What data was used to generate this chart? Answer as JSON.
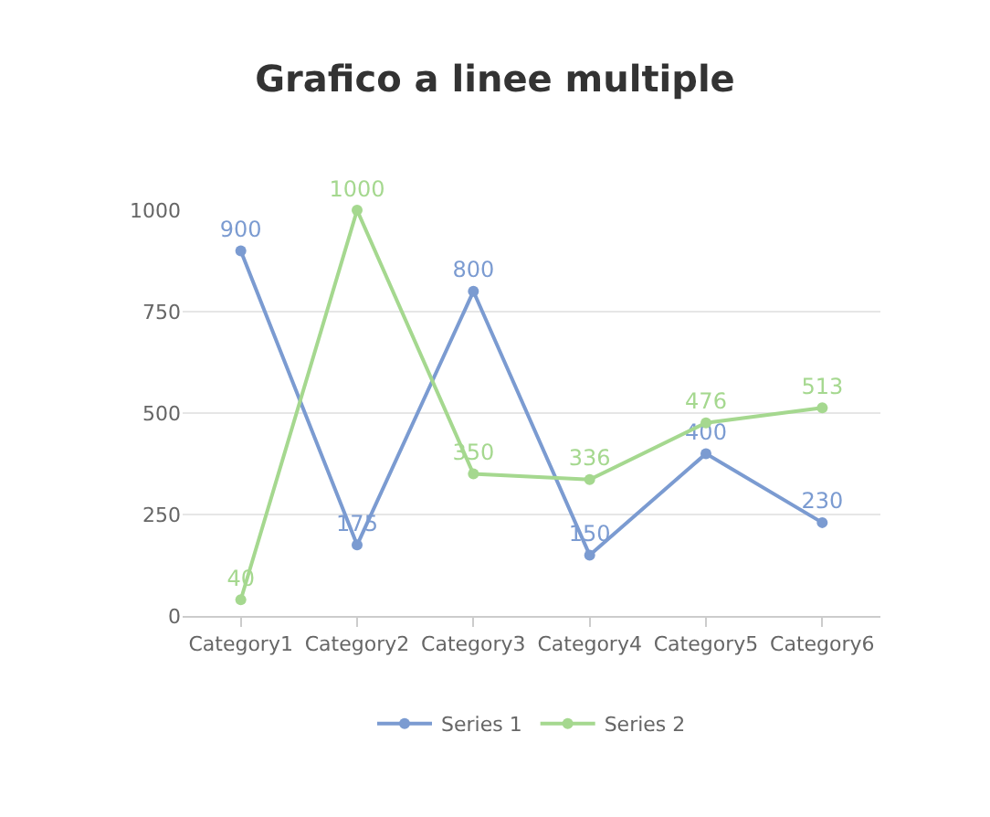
{
  "chart_data": {
    "type": "line",
    "title": "Grafico a linee multiple",
    "categories": [
      "Category1",
      "Category2",
      "Category3",
      "Category4",
      "Category5",
      "Category6"
    ],
    "series": [
      {
        "name": "Series 1",
        "color": "#7b9bd1",
        "values": [
          900,
          175,
          800,
          150,
          400,
          230
        ]
      },
      {
        "name": "Series 2",
        "color": "#a5d88f",
        "values": [
          40,
          1000,
          350,
          336,
          476,
          513
        ]
      }
    ],
    "ylim": [
      0,
      1000
    ],
    "yticks": [
      0,
      250,
      500,
      750,
      1000
    ],
    "grid": "y",
    "legend": "bottom",
    "marker": "circle",
    "line_style": "solid",
    "data_labels": true
  }
}
